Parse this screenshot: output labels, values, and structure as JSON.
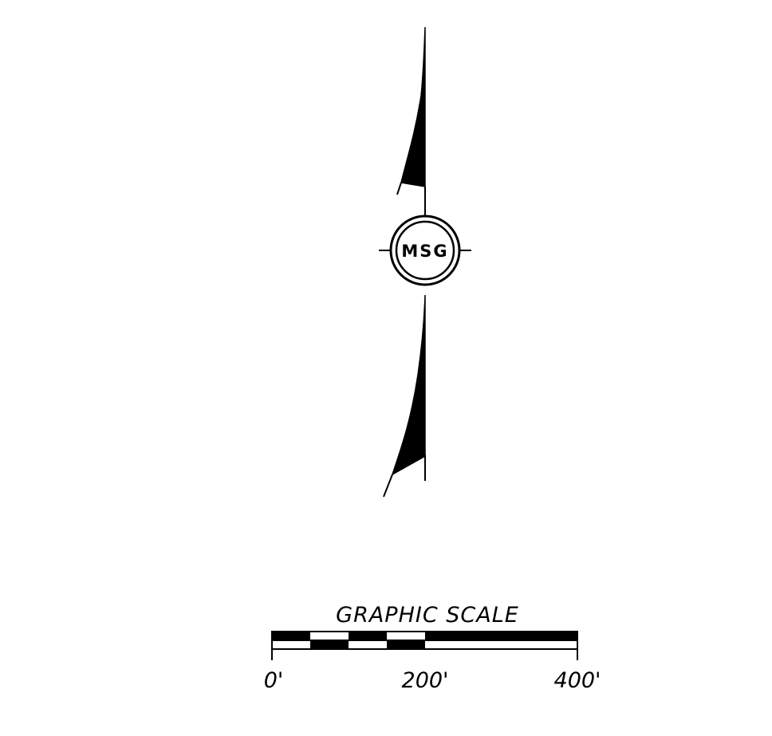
{
  "north_arrow": {
    "symbol_label": "MSG"
  },
  "graphic_scale": {
    "title": "GRAPHIC SCALE",
    "ticks": [
      "0'",
      "200'",
      "400'"
    ]
  },
  "colors": {
    "ink": "#000000",
    "paper": "#ffffff"
  }
}
